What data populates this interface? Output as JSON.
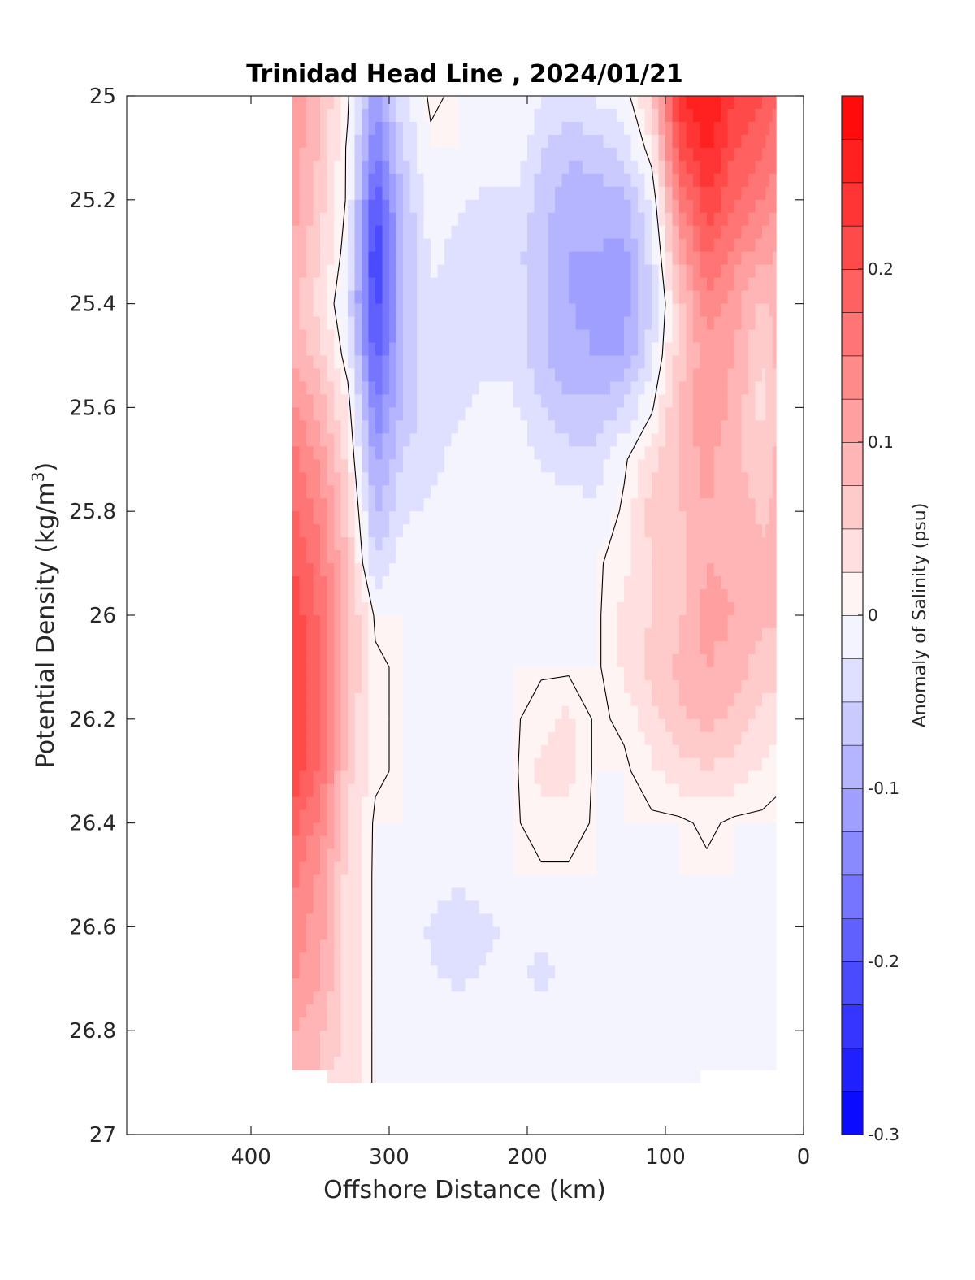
{
  "chart_data": {
    "type": "heatmap",
    "title": "Trinidad Head Line , 2024/01/21",
    "xlabel": "Offshore Distance (km)",
    "ylabel_main": "Potential Density (kg/m",
    "ylabel_sup": "3",
    "ylabel_close": ")",
    "colorbar_label": "Anomaly of Salinity (psu)",
    "xlim": [
      490,
      0
    ],
    "x_reversed": true,
    "ylim": [
      25,
      27
    ],
    "y_reversed": true,
    "xticks": [
      400,
      300,
      200,
      100,
      0
    ],
    "xtick_labels": [
      "400",
      "300",
      "200",
      "100",
      "0"
    ],
    "yticks": [
      25,
      25.2,
      25.4,
      25.6,
      25.8,
      26,
      26.2,
      26.4,
      26.6,
      26.8,
      27
    ],
    "ytick_labels": [
      "25",
      "25.2",
      "25.4",
      "25.6",
      "25.8",
      "26",
      "26.2",
      "26.4",
      "26.6",
      "26.8",
      "27"
    ],
    "colorbar": {
      "min": -0.3,
      "max": 0.3,
      "step": 0.025,
      "ticks": [
        -0.3,
        -0.2,
        -0.1,
        0,
        0.1,
        0.2
      ],
      "tick_labels": [
        "-0.3",
        "-0.2",
        "-0.1",
        "0",
        "0.1",
        "0.2"
      ],
      "negative_color": "#0000ff",
      "positive_color": "#ff0000",
      "zero_color": "#ffffff"
    },
    "x": [
      370,
      350,
      330,
      310,
      290,
      270,
      250,
      230,
      210,
      190,
      170,
      150,
      130,
      110,
      90,
      70,
      50,
      30,
      20
    ],
    "y": [
      25.0,
      25.1,
      25.2,
      25.3,
      25.4,
      25.5,
      25.6,
      25.7,
      25.8,
      25.9,
      26.0,
      26.1,
      26.2,
      26.3,
      26.4,
      26.5,
      26.6,
      26.7,
      26.8,
      26.9
    ],
    "z": [
      [
        0.13,
        0.08,
        0.01,
        -0.12,
        -0.03,
        0.01,
        0.0,
        0.0,
        0.0,
        -0.02,
        -0.03,
        -0.02,
        -0.01,
        0.06,
        0.24,
        0.28,
        0.22,
        0.2,
        0.18
      ],
      [
        0.12,
        0.07,
        0.0,
        -0.15,
        -0.05,
        0.0,
        0.0,
        0.0,
        0.0,
        -0.05,
        -0.07,
        -0.06,
        -0.04,
        0.02,
        0.2,
        0.26,
        0.2,
        0.18,
        0.16
      ],
      [
        0.11,
        0.06,
        0.0,
        -0.2,
        -0.07,
        -0.01,
        -0.02,
        -0.03,
        -0.03,
        -0.06,
        -0.09,
        -0.09,
        -0.08,
        -0.02,
        0.15,
        0.22,
        0.18,
        0.15,
        0.13
      ],
      [
        0.1,
        0.05,
        -0.01,
        -0.23,
        -0.08,
        -0.02,
        -0.03,
        -0.04,
        -0.04,
        -0.07,
        -0.1,
        -0.1,
        -0.11,
        -0.04,
        0.1,
        0.18,
        0.14,
        0.11,
        0.1
      ],
      [
        0.08,
        0.04,
        -0.03,
        -0.22,
        -0.08,
        -0.03,
        -0.03,
        -0.03,
        -0.03,
        -0.07,
        -0.1,
        -0.11,
        -0.11,
        -0.05,
        0.06,
        0.14,
        0.11,
        0.07,
        0.08
      ],
      [
        0.1,
        0.06,
        -0.01,
        -0.19,
        -0.08,
        -0.03,
        -0.03,
        -0.03,
        -0.03,
        -0.07,
        -0.09,
        -0.1,
        -0.1,
        -0.03,
        0.06,
        0.12,
        0.1,
        0.05,
        0.08
      ],
      [
        0.13,
        0.09,
        0.02,
        -0.15,
        -0.07,
        -0.03,
        -0.03,
        -0.02,
        -0.02,
        -0.05,
        -0.07,
        -0.07,
        -0.05,
        0.0,
        0.08,
        0.12,
        0.09,
        0.04,
        0.07
      ],
      [
        0.16,
        0.12,
        0.04,
        -0.11,
        -0.05,
        -0.03,
        -0.02,
        0.0,
        0.0,
        -0.03,
        -0.04,
        -0.04,
        0.0,
        0.04,
        0.08,
        0.11,
        0.08,
        0.06,
        0.08
      ],
      [
        0.18,
        0.14,
        0.06,
        -0.08,
        -0.03,
        -0.02,
        -0.01,
        0.0,
        0.0,
        0.0,
        -0.01,
        -0.02,
        0.01,
        0.06,
        0.07,
        0.1,
        0.09,
        0.07,
        0.08
      ],
      [
        0.2,
        0.16,
        0.07,
        -0.05,
        -0.01,
        -0.01,
        -0.01,
        0.0,
        0.0,
        0.0,
        0.0,
        0.0,
        0.02,
        0.05,
        0.06,
        0.1,
        0.09,
        0.08,
        0.08
      ],
      [
        0.22,
        0.17,
        0.08,
        0.0,
        0.0,
        0.0,
        0.0,
        0.0,
        0.0,
        0.0,
        0.0,
        0.0,
        0.03,
        0.05,
        0.07,
        0.11,
        0.1,
        0.08,
        0.08
      ],
      [
        0.23,
        0.18,
        0.08,
        0.01,
        0.0,
        0.0,
        0.0,
        0.0,
        0.0,
        0.0,
        0.0,
        0.0,
        0.03,
        0.06,
        0.08,
        0.1,
        0.09,
        0.06,
        0.06
      ],
      [
        0.23,
        0.18,
        0.07,
        0.01,
        0.0,
        0.0,
        0.0,
        0.0,
        0.0,
        0.02,
        0.03,
        0.0,
        0.01,
        0.04,
        0.07,
        0.08,
        0.07,
        0.04,
        0.04
      ],
      [
        0.22,
        0.17,
        0.06,
        0.01,
        0.0,
        0.0,
        0.0,
        0.0,
        0.0,
        0.03,
        0.03,
        0.0,
        0.0,
        0.02,
        0.04,
        0.05,
        0.04,
        0.02,
        0.01
      ],
      [
        0.19,
        0.14,
        0.05,
        0.0,
        0.0,
        0.0,
        0.0,
        0.0,
        0.0,
        0.02,
        0.02,
        0.0,
        0.0,
        0.0,
        0.0,
        0.01,
        0.0,
        0.0,
        0.0
      ],
      [
        0.16,
        0.12,
        0.04,
        0.0,
        0.0,
        -0.01,
        -0.02,
        -0.01,
        0.0,
        0.0,
        0.0,
        0.0,
        0.0,
        0.0,
        0.0,
        0.0,
        0.0,
        0.0,
        0.0
      ],
      [
        0.14,
        0.11,
        0.04,
        0.0,
        0.0,
        -0.03,
        -0.04,
        -0.03,
        -0.02,
        -0.02,
        -0.02,
        0.0,
        0.0,
        -0.02,
        0.0,
        0.0,
        0.0,
        0.0,
        0.0
      ],
      [
        0.13,
        0.1,
        0.04,
        0.0,
        0.0,
        -0.02,
        -0.03,
        -0.02,
        -0.02,
        -0.03,
        -0.02,
        0.0,
        0.0,
        0.0,
        0.0,
        0.0,
        0.0,
        0.0,
        0.0
      ],
      [
        0.1,
        0.08,
        0.04,
        0.0,
        0.0,
        0.0,
        0.0,
        0.0,
        0.0,
        0.0,
        -0.01,
        -0.01,
        0.0,
        0.0,
        0.0,
        0.0,
        0.0,
        0.0,
        0.0
      ],
      [
        null,
        null,
        0.04,
        0.0,
        0.0,
        0.0,
        0.0,
        0.0,
        0.0,
        0.0,
        -0.02,
        -0.02,
        0.0,
        0.0,
        0.0,
        null,
        null,
        null,
        null
      ]
    ]
  }
}
